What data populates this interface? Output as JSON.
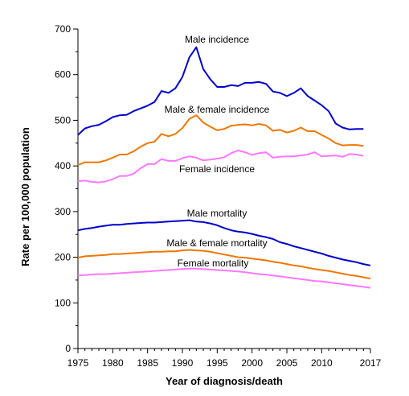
{
  "chart_data": {
    "type": "line",
    "title": "",
    "xlabel": "Year of diagnosis/death",
    "ylabel": "Rate per 100,000 population",
    "xlim": [
      1975,
      2017
    ],
    "ylim": [
      0,
      700
    ],
    "grid": false,
    "x_tick_labels": [
      "1975",
      "1980",
      "1985",
      "1990",
      "1995",
      "2000",
      "2005",
      "2010",
      "2017"
    ],
    "x_ticks": [
      1975,
      1980,
      1985,
      1990,
      1995,
      2000,
      2005,
      2010,
      2017
    ],
    "y_ticks": [
      0,
      100,
      200,
      300,
      400,
      500,
      600,
      700
    ],
    "y_tick_labels": [
      "0",
      "100",
      "200",
      "300",
      "400",
      "500",
      "600",
      "700"
    ],
    "x": [
      1975,
      1976,
      1977,
      1978,
      1979,
      1980,
      1981,
      1982,
      1983,
      1984,
      1985,
      1986,
      1987,
      1988,
      1989,
      1990,
      1991,
      1992,
      1993,
      1994,
      1995,
      1996,
      1997,
      1998,
      1999,
      2000,
      2001,
      2002,
      2003,
      2004,
      2005,
      2006,
      2007,
      2008,
      2009,
      2010,
      2011,
      2012,
      2013,
      2014,
      2015,
      2016,
      2017
    ],
    "series": [
      {
        "name": "Male incidence",
        "color": "#0000cc",
        "values": [
          468,
          482,
          487,
          490,
          498,
          507,
          511,
          512,
          520,
          526,
          532,
          540,
          564,
          560,
          570,
          595,
          638,
          660,
          612,
          590,
          573,
          573,
          577,
          575,
          582,
          582,
          584,
          580,
          563,
          560,
          553,
          560,
          570,
          553,
          543,
          533,
          520,
          493,
          484,
          480,
          481,
          481,
          null
        ]
      },
      {
        "name": "Male & female incidence",
        "color": "#ee7700",
        "values": [
          402,
          408,
          408,
          408,
          412,
          418,
          425,
          425,
          432,
          442,
          450,
          453,
          470,
          465,
          470,
          483,
          503,
          511,
          495,
          486,
          478,
          481,
          488,
          490,
          491,
          489,
          492,
          489,
          477,
          479,
          473,
          477,
          484,
          476,
          476,
          468,
          460,
          450,
          445,
          446,
          446,
          444,
          null
        ]
      },
      {
        "name": "Female incidence",
        "color": "#ff77ff",
        "values": [
          366,
          368,
          365,
          364,
          366,
          371,
          378,
          378,
          383,
          395,
          404,
          404,
          415,
          411,
          411,
          417,
          421,
          418,
          412,
          414,
          416,
          419,
          428,
          434,
          430,
          424,
          428,
          430,
          418,
          420,
          421,
          421,
          423,
          425,
          430,
          421,
          422,
          423,
          420,
          426,
          425,
          422,
          null
        ]
      },
      {
        "name": "Male mortality",
        "color": "#0000cc",
        "values": [
          259,
          262,
          264,
          267,
          269,
          271,
          271,
          273,
          274,
          275,
          276,
          276,
          277,
          278,
          279,
          280,
          281,
          278,
          277,
          274,
          270,
          264,
          259,
          256,
          254,
          251,
          247,
          244,
          240,
          233,
          229,
          224,
          220,
          216,
          212,
          208,
          203,
          199,
          195,
          192,
          189,
          185,
          182
        ]
      },
      {
        "name": "Male & female mortality",
        "color": "#ee7700",
        "values": [
          199,
          202,
          203,
          204,
          205,
          207,
          207,
          208,
          209,
          210,
          211,
          212,
          212,
          213,
          213,
          215,
          216,
          215,
          214,
          212,
          209,
          206,
          203,
          200,
          199,
          197,
          195,
          193,
          190,
          188,
          185,
          182,
          180,
          177,
          174,
          172,
          170,
          167,
          164,
          161,
          159,
          156,
          153
        ]
      },
      {
        "name": "Female mortality",
        "color": "#ff77ff",
        "values": [
          160,
          161,
          162,
          163,
          163,
          164,
          165,
          166,
          167,
          168,
          169,
          170,
          171,
          172,
          173,
          174,
          175,
          175,
          174,
          173,
          172,
          171,
          170,
          169,
          167,
          165,
          163,
          162,
          160,
          158,
          156,
          154,
          152,
          150,
          148,
          147,
          145,
          143,
          141,
          139,
          137,
          135,
          133
        ]
      }
    ]
  }
}
